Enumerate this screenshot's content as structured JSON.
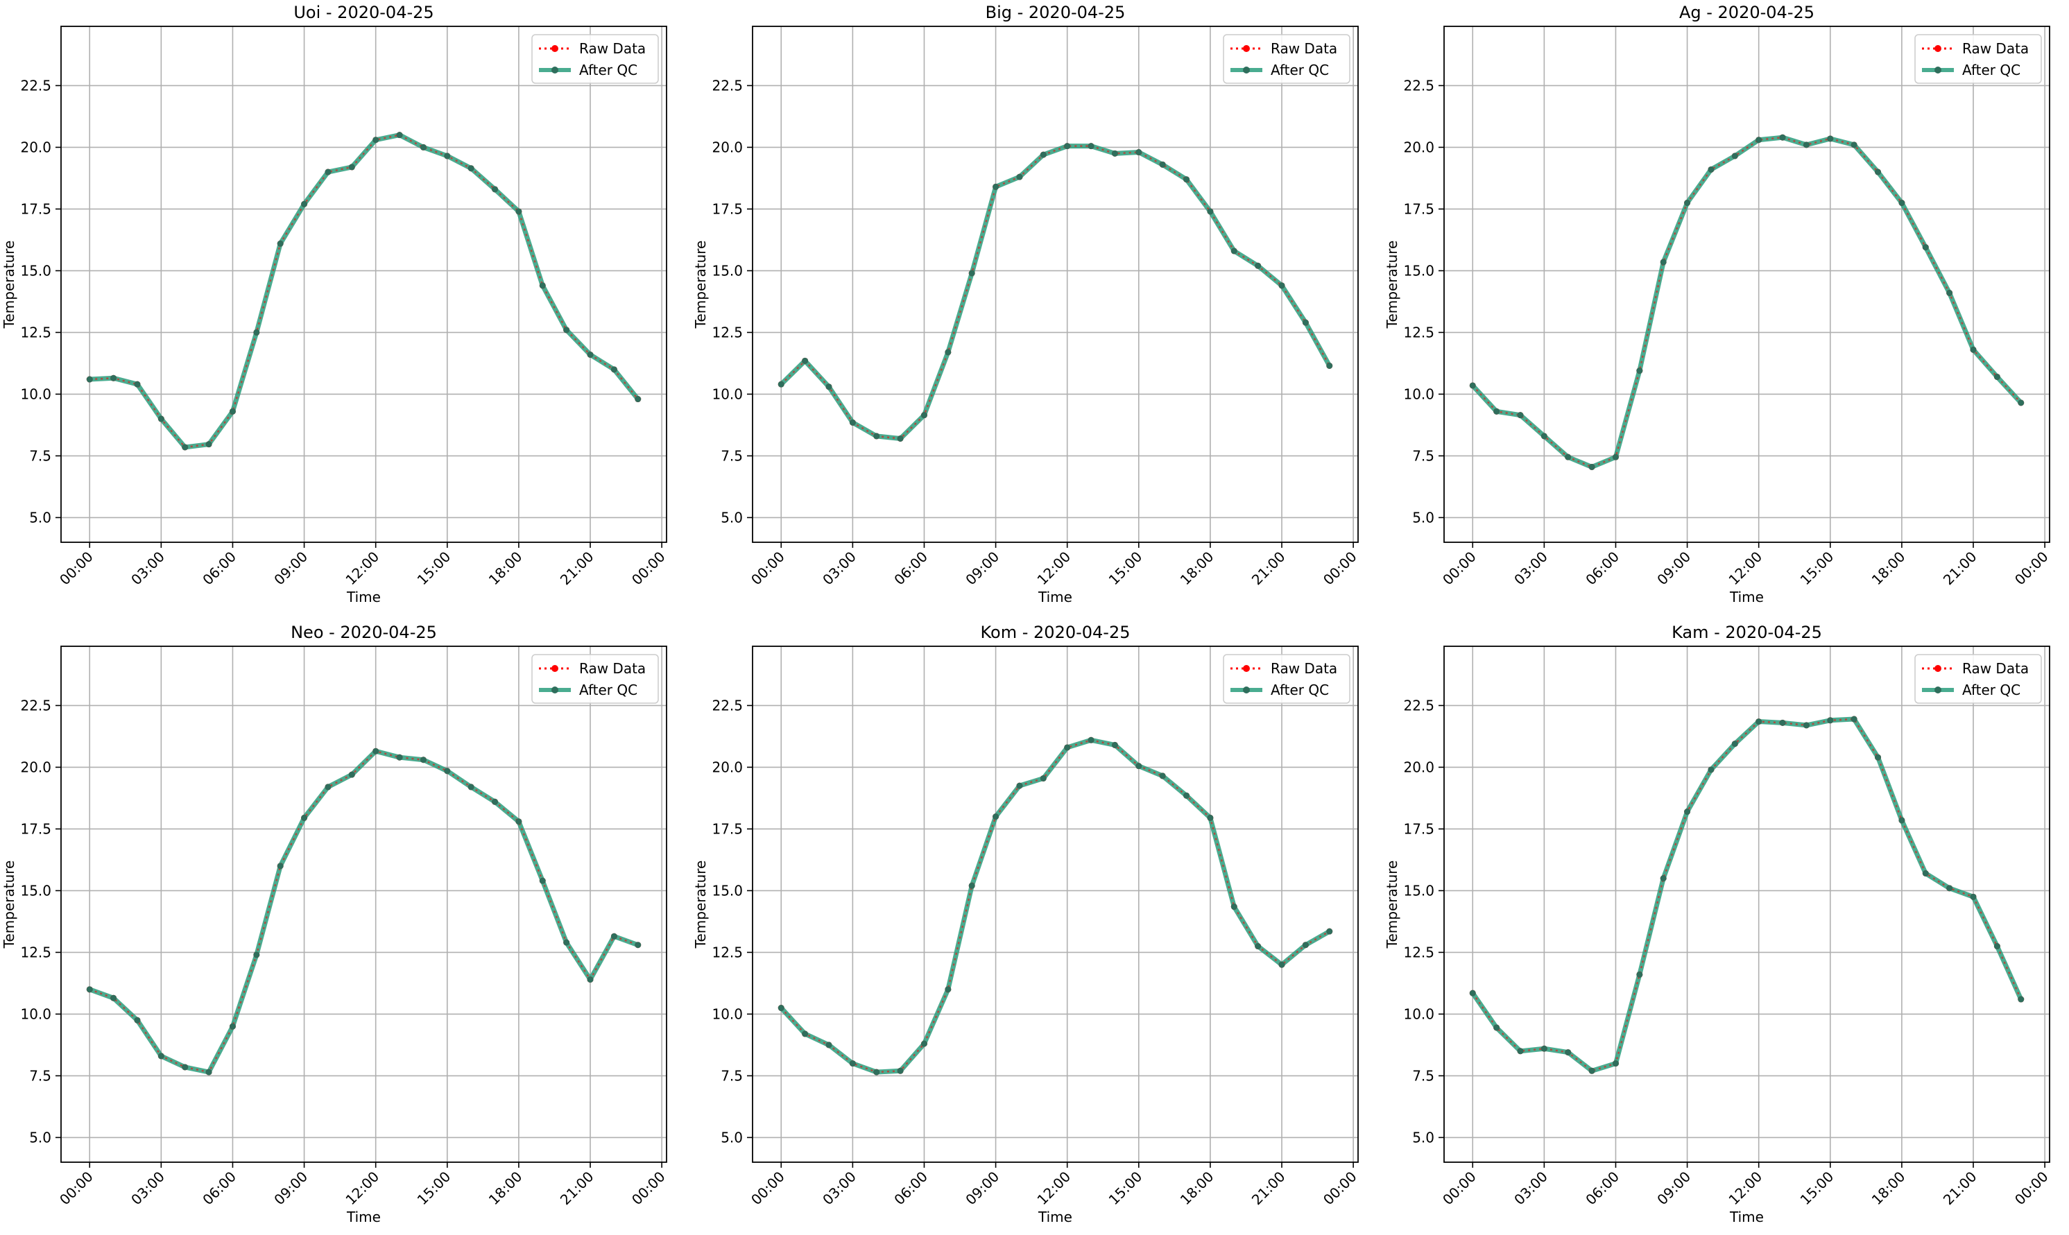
{
  "figure": {
    "legend_raw_label": "Raw Data",
    "legend_qc_label": "After QC",
    "colors": {
      "raw": "#ff0000",
      "qc": "#2a9d7c",
      "marker": "#2f6e5c",
      "grid": "#b0b0b0"
    }
  },
  "chart_data": [
    {
      "type": "line",
      "title": "Uoi - 2020-04-25",
      "xlabel": "Time",
      "ylabel": "Temperature",
      "x_ticks": [
        "00:00",
        "03:00",
        "06:00",
        "09:00",
        "12:00",
        "15:00",
        "18:00",
        "21:00",
        "00:00"
      ],
      "y_ticks": [
        "5.0",
        "7.5",
        "10.0",
        "12.5",
        "15.0",
        "17.5",
        "20.0",
        "22.5"
      ],
      "ylim": [
        4.0,
        24.9
      ],
      "xlim_hours": [
        -1.2,
        24.2
      ],
      "grid": true,
      "legend_position": "top-right",
      "x_hours": [
        0,
        1,
        2,
        3,
        4,
        5,
        6,
        7,
        8,
        9,
        10,
        11,
        12,
        13,
        14,
        15,
        16,
        17,
        18,
        19,
        20,
        21,
        22,
        23
      ],
      "series": [
        {
          "name": "Raw Data",
          "values": [
            10.6,
            10.65,
            10.4,
            9.0,
            7.85,
            7.97,
            9.3,
            12.5,
            16.1,
            17.7,
            19.0,
            19.2,
            20.3,
            20.5,
            20.0,
            19.65,
            19.15,
            18.3,
            17.4,
            14.4,
            12.6,
            11.6,
            11.0,
            9.8
          ]
        },
        {
          "name": "After QC",
          "values": [
            10.6,
            10.65,
            10.4,
            9.0,
            7.85,
            7.97,
            9.3,
            12.5,
            16.1,
            17.7,
            19.0,
            19.2,
            20.3,
            20.5,
            20.0,
            19.65,
            19.15,
            18.3,
            17.4,
            14.4,
            12.6,
            11.6,
            11.0,
            9.8
          ]
        }
      ]
    },
    {
      "type": "line",
      "title": "Big - 2020-04-25",
      "xlabel": "Time",
      "ylabel": "Temperature",
      "x_ticks": [
        "00:00",
        "03:00",
        "06:00",
        "09:00",
        "12:00",
        "15:00",
        "18:00",
        "21:00",
        "00:00"
      ],
      "y_ticks": [
        "5.0",
        "7.5",
        "10.0",
        "12.5",
        "15.0",
        "17.5",
        "20.0",
        "22.5"
      ],
      "ylim": [
        4.0,
        24.9
      ],
      "xlim_hours": [
        -1.2,
        24.2
      ],
      "grid": true,
      "legend_position": "top-right",
      "x_hours": [
        0,
        1,
        2,
        3,
        4,
        5,
        6,
        7,
        8,
        9,
        10,
        11,
        12,
        13,
        14,
        15,
        16,
        17,
        18,
        19,
        20,
        21,
        22,
        23
      ],
      "series": [
        {
          "name": "Raw Data",
          "values": [
            10.4,
            11.35,
            10.3,
            8.85,
            8.3,
            8.2,
            9.15,
            11.7,
            14.9,
            18.4,
            18.8,
            19.7,
            20.05,
            20.05,
            19.75,
            19.8,
            19.3,
            18.7,
            17.4,
            15.8,
            15.2,
            14.4,
            12.9,
            11.15
          ]
        },
        {
          "name": "After QC",
          "values": [
            10.4,
            11.35,
            10.3,
            8.85,
            8.3,
            8.2,
            9.15,
            11.7,
            14.9,
            18.4,
            18.8,
            19.7,
            20.05,
            20.05,
            19.75,
            19.8,
            19.3,
            18.7,
            17.4,
            15.8,
            15.2,
            14.4,
            12.9,
            11.15
          ]
        }
      ]
    },
    {
      "type": "line",
      "title": "Ag - 2020-04-25",
      "xlabel": "Time",
      "ylabel": "Temperature",
      "x_ticks": [
        "00:00",
        "03:00",
        "06:00",
        "09:00",
        "12:00",
        "15:00",
        "18:00",
        "21:00",
        "00:00"
      ],
      "y_ticks": [
        "5.0",
        "7.5",
        "10.0",
        "12.5",
        "15.0",
        "17.5",
        "20.0",
        "22.5"
      ],
      "ylim": [
        4.0,
        24.9
      ],
      "xlim_hours": [
        -1.2,
        24.2
      ],
      "grid": true,
      "legend_position": "top-right",
      "x_hours": [
        0,
        1,
        2,
        3,
        4,
        5,
        6,
        7,
        8,
        9,
        10,
        11,
        12,
        13,
        14,
        15,
        16,
        17,
        18,
        19,
        20,
        21,
        22,
        23
      ],
      "series": [
        {
          "name": "Raw Data",
          "values": [
            10.35,
            9.3,
            9.15,
            8.3,
            7.45,
            7.05,
            7.45,
            10.95,
            15.35,
            17.75,
            19.1,
            19.65,
            20.3,
            20.4,
            20.1,
            20.35,
            20.1,
            19.0,
            17.75,
            15.95,
            14.1,
            11.8,
            10.7,
            9.65
          ]
        },
        {
          "name": "After QC",
          "values": [
            10.35,
            9.3,
            9.15,
            8.3,
            7.45,
            7.05,
            7.45,
            10.95,
            15.35,
            17.75,
            19.1,
            19.65,
            20.3,
            20.4,
            20.1,
            20.35,
            20.1,
            19.0,
            17.75,
            15.95,
            14.1,
            11.8,
            10.7,
            9.65
          ]
        }
      ]
    },
    {
      "type": "line",
      "title": "Neo - 2020-04-25",
      "xlabel": "Time",
      "ylabel": "Temperature",
      "x_ticks": [
        "00:00",
        "03:00",
        "06:00",
        "09:00",
        "12:00",
        "15:00",
        "18:00",
        "21:00",
        "00:00"
      ],
      "y_ticks": [
        "5.0",
        "7.5",
        "10.0",
        "12.5",
        "15.0",
        "17.5",
        "20.0",
        "22.5"
      ],
      "ylim": [
        4.0,
        24.9
      ],
      "xlim_hours": [
        -1.2,
        24.2
      ],
      "grid": true,
      "legend_position": "top-right",
      "x_hours": [
        0,
        1,
        2,
        3,
        4,
        5,
        6,
        7,
        8,
        9,
        10,
        11,
        12,
        13,
        14,
        15,
        16,
        17,
        18,
        19,
        20,
        21,
        22,
        23
      ],
      "series": [
        {
          "name": "Raw Data",
          "values": [
            11.0,
            10.65,
            9.75,
            8.3,
            7.85,
            7.65,
            9.5,
            12.4,
            16.0,
            17.95,
            19.2,
            19.7,
            20.65,
            20.4,
            20.3,
            19.85,
            19.2,
            18.6,
            17.8,
            15.4,
            12.9,
            11.4,
            13.15,
            12.8
          ]
        },
        {
          "name": "After QC",
          "values": [
            11.0,
            10.65,
            9.75,
            8.3,
            7.85,
            7.65,
            9.5,
            12.4,
            16.0,
            17.95,
            19.2,
            19.7,
            20.65,
            20.4,
            20.3,
            19.85,
            19.2,
            18.6,
            17.8,
            15.4,
            12.9,
            11.4,
            13.15,
            12.8
          ]
        }
      ]
    },
    {
      "type": "line",
      "title": "Kom - 2020-04-25",
      "xlabel": "Time",
      "ylabel": "Temperature",
      "x_ticks": [
        "00:00",
        "03:00",
        "06:00",
        "09:00",
        "12:00",
        "15:00",
        "18:00",
        "21:00",
        "00:00"
      ],
      "y_ticks": [
        "5.0",
        "7.5",
        "10.0",
        "12.5",
        "15.0",
        "17.5",
        "20.0",
        "22.5"
      ],
      "ylim": [
        4.0,
        24.9
      ],
      "xlim_hours": [
        -1.2,
        24.2
      ],
      "grid": true,
      "legend_position": "top-right",
      "x_hours": [
        0,
        1,
        2,
        3,
        4,
        5,
        6,
        7,
        8,
        9,
        10,
        11,
        12,
        13,
        14,
        15,
        16,
        17,
        18,
        19,
        20,
        21,
        22,
        23
      ],
      "series": [
        {
          "name": "Raw Data",
          "values": [
            10.25,
            9.2,
            8.75,
            8.0,
            7.65,
            7.7,
            8.8,
            11.0,
            15.2,
            18.0,
            19.25,
            19.55,
            20.8,
            21.1,
            20.9,
            20.05,
            19.65,
            18.85,
            17.95,
            14.35,
            12.75,
            12.0,
            12.8,
            13.35
          ]
        },
        {
          "name": "After QC",
          "values": [
            10.25,
            9.2,
            8.75,
            8.0,
            7.65,
            7.7,
            8.8,
            11.0,
            15.2,
            18.0,
            19.25,
            19.55,
            20.8,
            21.1,
            20.9,
            20.05,
            19.65,
            18.85,
            17.95,
            14.35,
            12.75,
            12.0,
            12.8,
            13.35
          ]
        }
      ]
    },
    {
      "type": "line",
      "title": "Kam - 2020-04-25",
      "xlabel": "Time",
      "ylabel": "Temperature",
      "x_ticks": [
        "00:00",
        "03:00",
        "06:00",
        "09:00",
        "12:00",
        "15:00",
        "18:00",
        "21:00",
        "00:00"
      ],
      "y_ticks": [
        "5.0",
        "7.5",
        "10.0",
        "12.5",
        "15.0",
        "17.5",
        "20.0",
        "22.5"
      ],
      "ylim": [
        4.0,
        24.9
      ],
      "xlim_hours": [
        -1.2,
        24.2
      ],
      "grid": true,
      "legend_position": "top-right",
      "x_hours": [
        0,
        1,
        2,
        3,
        4,
        5,
        6,
        7,
        8,
        9,
        10,
        11,
        12,
        13,
        14,
        15,
        16,
        17,
        18,
        19,
        20,
        21,
        22,
        23
      ],
      "series": [
        {
          "name": "Raw Data",
          "values": [
            10.85,
            9.45,
            8.5,
            8.6,
            8.45,
            7.7,
            8.0,
            11.6,
            15.5,
            18.2,
            19.9,
            20.95,
            21.85,
            21.8,
            21.7,
            21.9,
            21.95,
            20.4,
            17.85,
            15.7,
            15.1,
            14.75,
            12.75,
            10.6
          ]
        },
        {
          "name": "After QC",
          "values": [
            10.85,
            9.45,
            8.5,
            8.6,
            8.45,
            7.7,
            8.0,
            11.6,
            15.5,
            18.2,
            19.9,
            20.95,
            21.85,
            21.8,
            21.7,
            21.9,
            21.95,
            20.4,
            17.85,
            15.7,
            15.1,
            14.75,
            12.75,
            10.6
          ]
        }
      ]
    }
  ]
}
